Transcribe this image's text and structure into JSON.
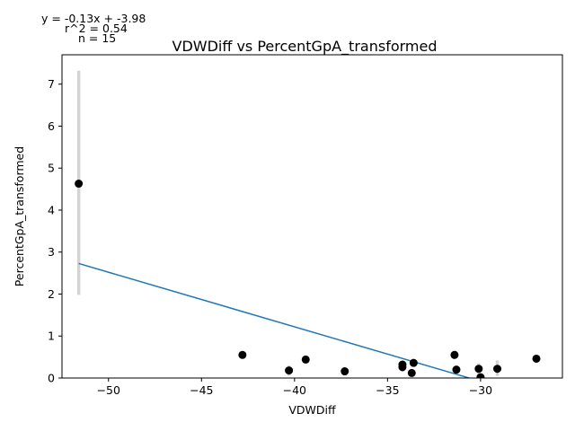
{
  "annotations": {
    "equation": "y = -0.13x + -3.98",
    "r2": "r^2 = 0.54",
    "n": "n = 15"
  },
  "chart_data": {
    "type": "scatter",
    "title": "VDWDiff vs PercentGpA_transformed",
    "xlabel": "VDWDiff",
    "ylabel": "PercentGpA_transformed",
    "xlim": [
      -52.5,
      -25.6
    ],
    "ylim": [
      0,
      7.7
    ],
    "xticks": [
      -50,
      -45,
      -40,
      -35,
      -30
    ],
    "xtick_labels": [
      "−50",
      "−45",
      "−40",
      "−35",
      "−30"
    ],
    "yticks": [
      0,
      1,
      2,
      3,
      4,
      5,
      6,
      7
    ],
    "ytick_labels": [
      "0",
      "1",
      "2",
      "3",
      "4",
      "5",
      "6",
      "7"
    ],
    "points": [
      {
        "x": -51.6,
        "y": 4.63,
        "err_low": 1.98,
        "err_high": 7.32
      },
      {
        "x": -42.8,
        "y": 0.55,
        "err_low": 0.5,
        "err_high": 0.6
      },
      {
        "x": -40.3,
        "y": 0.18,
        "err_low": 0.05,
        "err_high": 0.3
      },
      {
        "x": -39.4,
        "y": 0.44,
        "err_low": 0.4,
        "err_high": 0.48
      },
      {
        "x": -37.3,
        "y": 0.16,
        "err_low": 0.1,
        "err_high": 0.22
      },
      {
        "x": -34.2,
        "y": 0.26,
        "err_low": 0.15,
        "err_high": 0.35
      },
      {
        "x": -34.2,
        "y": 0.32,
        "err_low": 0.25,
        "err_high": 0.4
      },
      {
        "x": -33.7,
        "y": 0.12,
        "err_low": 0.05,
        "err_high": 0.2
      },
      {
        "x": -33.6,
        "y": 0.36,
        "err_low": 0.3,
        "err_high": 0.42
      },
      {
        "x": -31.4,
        "y": 0.55,
        "err_low": 0.45,
        "err_high": 0.65
      },
      {
        "x": -31.3,
        "y": 0.2,
        "err_low": 0.15,
        "err_high": 0.25
      },
      {
        "x": -30.1,
        "y": 0.22,
        "err_low": 0.1,
        "err_high": 0.35
      },
      {
        "x": -30.0,
        "y": 0.02,
        "err_low": 0.0,
        "err_high": 0.08
      },
      {
        "x": -29.1,
        "y": 0.22,
        "err_low": 0.05,
        "err_high": 0.42
      },
      {
        "x": -27.0,
        "y": 0.46,
        "err_low": 0.4,
        "err_high": 0.52
      }
    ],
    "fit": {
      "slope": -0.13,
      "intercept": -3.98,
      "x_start": -51.6,
      "x_end": -29.1
    },
    "colors": {
      "points": "#000000",
      "errorbars": "#d3d3d3",
      "fit_line": "#1f77b4"
    },
    "grid": false,
    "legend": "none"
  }
}
